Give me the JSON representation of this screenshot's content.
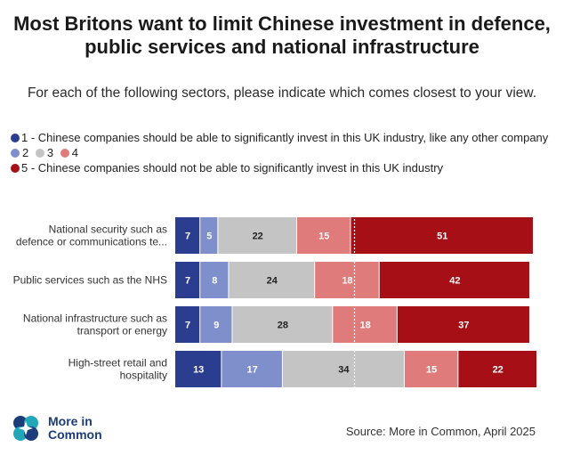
{
  "title": "Most Britons want to limit Chinese investment in defence, public services and national infrastructure",
  "subtitle": "For each of the following sectors, please indicate which comes closest to your view.",
  "legend": {
    "item1": "1 - Chinese companies should be able to significantly invest in this UK industry, like any other company",
    "item2": "2",
    "item3": "3",
    "item4": "4",
    "item5": "5 - Chinese companies should not be able to significantly invest in this UK industry"
  },
  "colors": [
    "#2b3d8f",
    "#7f8fcc",
    "#c4c4c4",
    "#e07b7b",
    "#a50f15"
  ],
  "chart_data": {
    "type": "bar",
    "orientation": "horizontal",
    "stacked": true,
    "categories": [
      "National security such as defence or communications te...",
      "Public services such as the NHS",
      "National infrastructure such as transport or energy",
      "High-street retail and hospitality"
    ],
    "series": [
      {
        "name": "1 - Chinese companies should be able to significantly invest in this UK industry, like any other company",
        "values": [
          7,
          7,
          7,
          13
        ]
      },
      {
        "name": "2",
        "values": [
          5,
          8,
          9,
          17
        ]
      },
      {
        "name": "3",
        "values": [
          22,
          24,
          28,
          34
        ]
      },
      {
        "name": "4",
        "values": [
          15,
          18,
          18,
          15
        ]
      },
      {
        "name": "5 - Chinese companies should not be able to significantly invest in this UK industry",
        "values": [
          51,
          42,
          37,
          22
        ]
      }
    ],
    "reference_line": 50,
    "title": "Most Britons want to limit Chinese investment in defence, public services and national infrastructure",
    "xlabel": "",
    "ylabel": ""
  },
  "brand": {
    "line1": "More in",
    "line2": "Common"
  },
  "source": "Source: More in Common, April 2025"
}
